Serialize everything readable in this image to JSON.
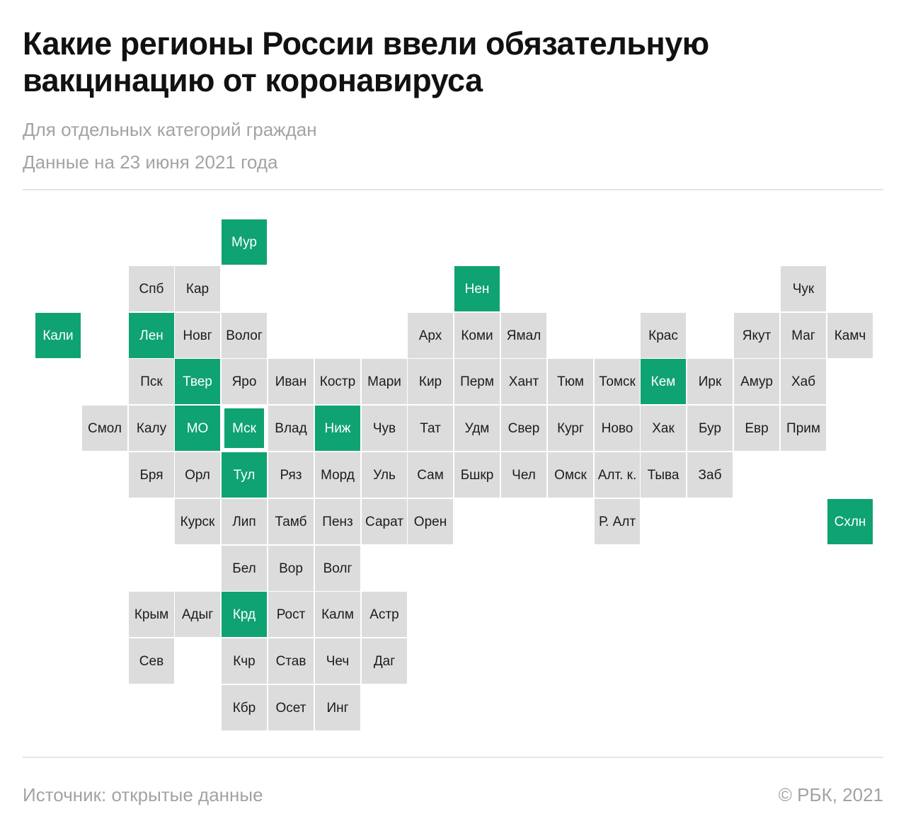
{
  "header": {
    "title_line1": "Какие регионы России ввели обязательную",
    "title_line2": "вакцинацию от коронавируса",
    "subtitle": "Для отдельных категорий граждан",
    "date_note": "Данные на 23 июня 2021 года"
  },
  "footer": {
    "source": "Источник:  открытые данные",
    "copyright": "©  РБК, 2021"
  },
  "colors": {
    "mandatory": "#0fa273",
    "other": "#dcdcdc"
  },
  "map": {
    "grid": "cartogram",
    "regions": [
      {
        "label": "Мур",
        "row": 0,
        "col": 4,
        "mandatory": true
      },
      {
        "label": "Спб",
        "row": 1,
        "col": 2,
        "mandatory": false
      },
      {
        "label": "Кар",
        "row": 1,
        "col": 3,
        "mandatory": false
      },
      {
        "label": "Нен",
        "row": 1,
        "col": 9,
        "mandatory": true
      },
      {
        "label": "Чук",
        "row": 1,
        "col": 16,
        "mandatory": false
      },
      {
        "label": "Кали",
        "row": 2,
        "col": 0,
        "mandatory": true
      },
      {
        "label": "Лен",
        "row": 2,
        "col": 2,
        "mandatory": true
      },
      {
        "label": "Новг",
        "row": 2,
        "col": 3,
        "mandatory": false
      },
      {
        "label": "Волог",
        "row": 2,
        "col": 4,
        "mandatory": false
      },
      {
        "label": "Арх",
        "row": 2,
        "col": 8,
        "mandatory": false
      },
      {
        "label": "Коми",
        "row": 2,
        "col": 9,
        "mandatory": false
      },
      {
        "label": "Ямал",
        "row": 2,
        "col": 10,
        "mandatory": false
      },
      {
        "label": "Крас",
        "row": 2,
        "col": 13,
        "mandatory": false
      },
      {
        "label": "Якут",
        "row": 2,
        "col": 15,
        "mandatory": false
      },
      {
        "label": "Маг",
        "row": 2,
        "col": 16,
        "mandatory": false
      },
      {
        "label": "Камч",
        "row": 2,
        "col": 17,
        "mandatory": false
      },
      {
        "label": "Пск",
        "row": 3,
        "col": 2,
        "mandatory": false
      },
      {
        "label": "Твер",
        "row": 3,
        "col": 3,
        "mandatory": true
      },
      {
        "label": "Яро",
        "row": 3,
        "col": 4,
        "mandatory": false
      },
      {
        "label": "Иван",
        "row": 3,
        "col": 5,
        "mandatory": false
      },
      {
        "label": "Костр",
        "row": 3,
        "col": 6,
        "mandatory": false
      },
      {
        "label": "Мари",
        "row": 3,
        "col": 7,
        "mandatory": false
      },
      {
        "label": "Кир",
        "row": 3,
        "col": 8,
        "mandatory": false
      },
      {
        "label": "Перм",
        "row": 3,
        "col": 9,
        "mandatory": false
      },
      {
        "label": "Хант",
        "row": 3,
        "col": 10,
        "mandatory": false
      },
      {
        "label": "Тюм",
        "row": 3,
        "col": 11,
        "mandatory": false
      },
      {
        "label": "Томск",
        "row": 3,
        "col": 12,
        "mandatory": false
      },
      {
        "label": "Кем",
        "row": 3,
        "col": 13,
        "mandatory": true
      },
      {
        "label": "Ирк",
        "row": 3,
        "col": 14,
        "mandatory": false
      },
      {
        "label": "Амур",
        "row": 3,
        "col": 15,
        "mandatory": false
      },
      {
        "label": "Хаб",
        "row": 3,
        "col": 16,
        "mandatory": false
      },
      {
        "label": "Смол",
        "row": 4,
        "col": 1,
        "mandatory": false
      },
      {
        "label": "Калу",
        "row": 4,
        "col": 2,
        "mandatory": false
      },
      {
        "label": "МО",
        "row": 4,
        "col": 3,
        "mandatory": true
      },
      {
        "label": "Мск",
        "row": 4,
        "col": 4,
        "mandatory": true,
        "framed": true
      },
      {
        "label": "Влад",
        "row": 4,
        "col": 5,
        "mandatory": false
      },
      {
        "label": "Ниж",
        "row": 4,
        "col": 6,
        "mandatory": true
      },
      {
        "label": "Чув",
        "row": 4,
        "col": 7,
        "mandatory": false
      },
      {
        "label": "Тат",
        "row": 4,
        "col": 8,
        "mandatory": false
      },
      {
        "label": "Удм",
        "row": 4,
        "col": 9,
        "mandatory": false
      },
      {
        "label": "Свер",
        "row": 4,
        "col": 10,
        "mandatory": false
      },
      {
        "label": "Кург",
        "row": 4,
        "col": 11,
        "mandatory": false
      },
      {
        "label": "Ново",
        "row": 4,
        "col": 12,
        "mandatory": false
      },
      {
        "label": "Хак",
        "row": 4,
        "col": 13,
        "mandatory": false
      },
      {
        "label": "Бур",
        "row": 4,
        "col": 14,
        "mandatory": false
      },
      {
        "label": "Евр",
        "row": 4,
        "col": 15,
        "mandatory": false
      },
      {
        "label": "Прим",
        "row": 4,
        "col": 16,
        "mandatory": false
      },
      {
        "label": "Бря",
        "row": 5,
        "col": 2,
        "mandatory": false
      },
      {
        "label": "Орл",
        "row": 5,
        "col": 3,
        "mandatory": false
      },
      {
        "label": "Тул",
        "row": 5,
        "col": 4,
        "mandatory": true
      },
      {
        "label": "Ряз",
        "row": 5,
        "col": 5,
        "mandatory": false
      },
      {
        "label": "Морд",
        "row": 5,
        "col": 6,
        "mandatory": false
      },
      {
        "label": "Уль",
        "row": 5,
        "col": 7,
        "mandatory": false
      },
      {
        "label": "Сам",
        "row": 5,
        "col": 8,
        "mandatory": false
      },
      {
        "label": "Бшкр",
        "row": 5,
        "col": 9,
        "mandatory": false
      },
      {
        "label": "Чел",
        "row": 5,
        "col": 10,
        "mandatory": false
      },
      {
        "label": "Омск",
        "row": 5,
        "col": 11,
        "mandatory": false
      },
      {
        "label": "Алт. к.",
        "row": 5,
        "col": 12,
        "mandatory": false
      },
      {
        "label": "Тыва",
        "row": 5,
        "col": 13,
        "mandatory": false
      },
      {
        "label": "Заб",
        "row": 5,
        "col": 14,
        "mandatory": false
      },
      {
        "label": "Курск",
        "row": 6,
        "col": 3,
        "mandatory": false
      },
      {
        "label": "Лип",
        "row": 6,
        "col": 4,
        "mandatory": false
      },
      {
        "label": "Тамб",
        "row": 6,
        "col": 5,
        "mandatory": false
      },
      {
        "label": "Пенз",
        "row": 6,
        "col": 6,
        "mandatory": false
      },
      {
        "label": "Сарат",
        "row": 6,
        "col": 7,
        "mandatory": false
      },
      {
        "label": "Орен",
        "row": 6,
        "col": 8,
        "mandatory": false
      },
      {
        "label": "Р. Алт",
        "row": 6,
        "col": 12,
        "mandatory": false
      },
      {
        "label": "Схлн",
        "row": 6,
        "col": 17,
        "mandatory": true
      },
      {
        "label": "Бел",
        "row": 7,
        "col": 4,
        "mandatory": false
      },
      {
        "label": "Вор",
        "row": 7,
        "col": 5,
        "mandatory": false
      },
      {
        "label": "Волг",
        "row": 7,
        "col": 6,
        "mandatory": false
      },
      {
        "label": "Крым",
        "row": 8,
        "col": 2,
        "mandatory": false
      },
      {
        "label": "Адыг",
        "row": 8,
        "col": 3,
        "mandatory": false
      },
      {
        "label": "Крд",
        "row": 8,
        "col": 4,
        "mandatory": true
      },
      {
        "label": "Рост",
        "row": 8,
        "col": 5,
        "mandatory": false
      },
      {
        "label": "Калм",
        "row": 8,
        "col": 6,
        "mandatory": false
      },
      {
        "label": "Астр",
        "row": 8,
        "col": 7,
        "mandatory": false
      },
      {
        "label": "Сев",
        "row": 9,
        "col": 2,
        "mandatory": false
      },
      {
        "label": "Кчр",
        "row": 9,
        "col": 4,
        "mandatory": false
      },
      {
        "label": "Став",
        "row": 9,
        "col": 5,
        "mandatory": false
      },
      {
        "label": "Чеч",
        "row": 9,
        "col": 6,
        "mandatory": false
      },
      {
        "label": "Даг",
        "row": 9,
        "col": 7,
        "mandatory": false
      },
      {
        "label": "Кбр",
        "row": 10,
        "col": 4,
        "mandatory": false
      },
      {
        "label": "Осет",
        "row": 10,
        "col": 5,
        "mandatory": false
      },
      {
        "label": "Инг",
        "row": 10,
        "col": 6,
        "mandatory": false
      }
    ]
  }
}
